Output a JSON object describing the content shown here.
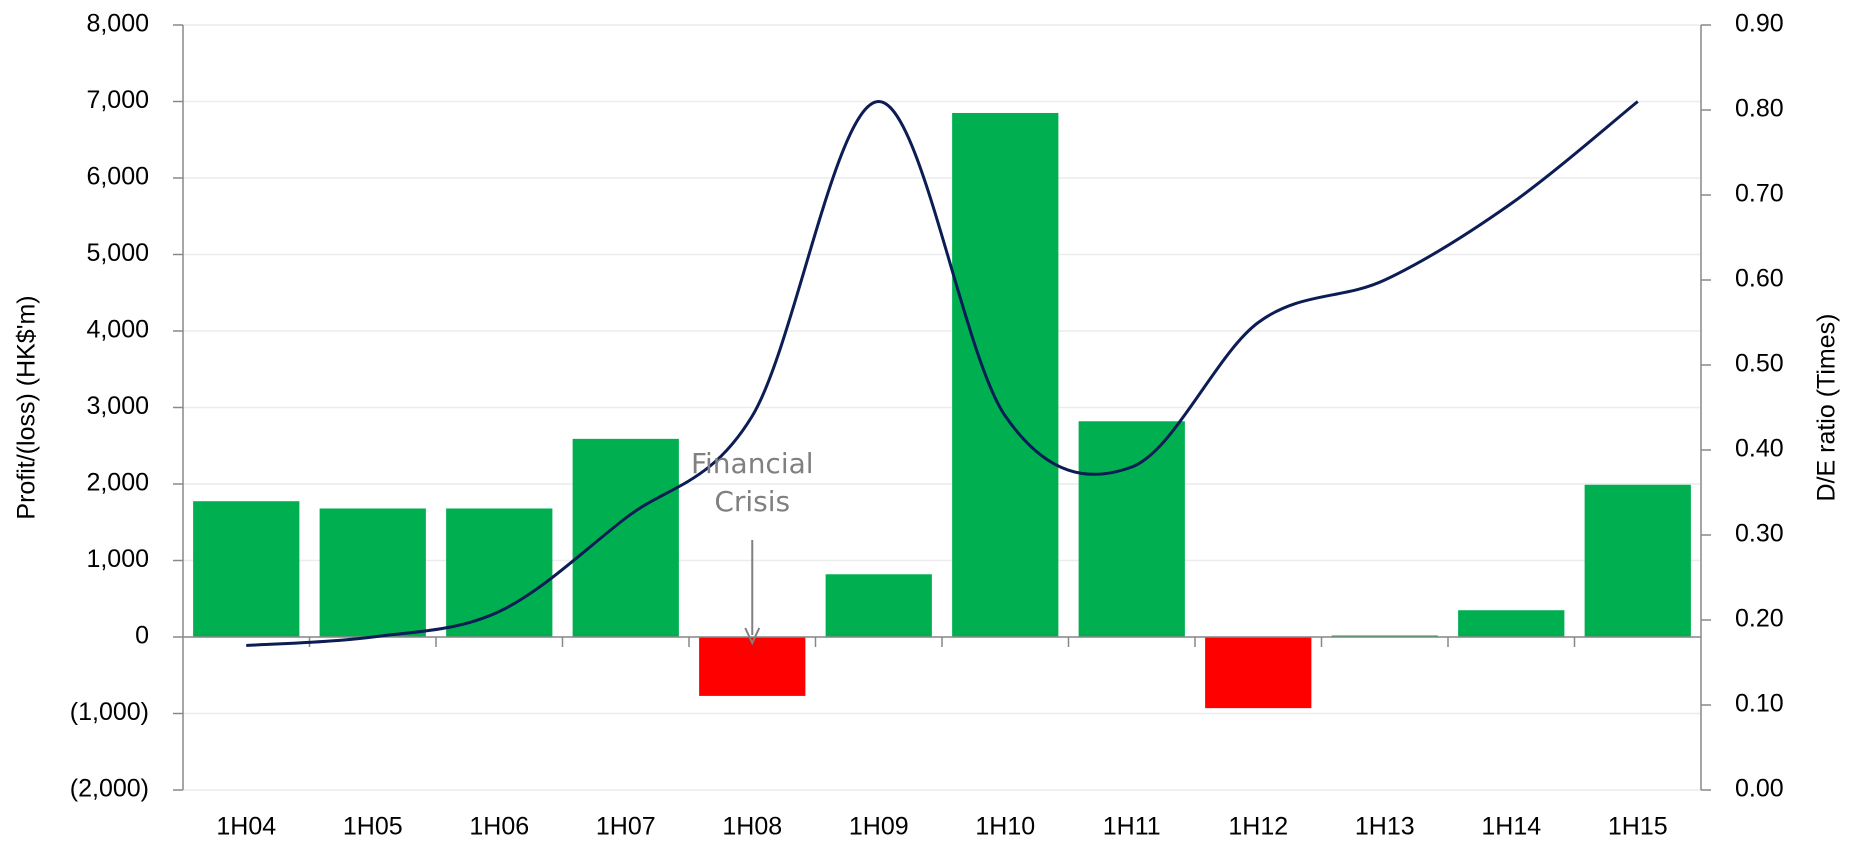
{
  "chart_data": {
    "type": "bar_line",
    "categories": [
      "1H04",
      "1H05",
      "1H06",
      "1H07",
      "1H08",
      "1H09",
      "1H10",
      "1H11",
      "1H12",
      "1H13",
      "1H14",
      "1H15"
    ],
    "series": [
      {
        "name": "Profit/(loss)",
        "type": "bar",
        "color_positive": "#00b050",
        "color_negative": "#ff0000",
        "values": [
          1775,
          1680,
          1680,
          2590,
          -770,
          820,
          6850,
          2820,
          -930,
          20,
          350,
          1990
        ]
      },
      {
        "name": "D/E ratio",
        "type": "line",
        "axis": "y2",
        "color": "#0c1c54",
        "values": [
          0.17,
          0.18,
          0.21,
          0.32,
          0.44,
          0.81,
          0.44,
          0.38,
          0.55,
          0.6,
          0.69,
          0.81
        ]
      }
    ],
    "ylabel": "Profit/(loss) (HK$'m)",
    "y2label": "D/E ratio  (Times)",
    "ylim": [
      -2000,
      8000
    ],
    "yticks": [
      {
        "value": -2000,
        "label": "(2,000)"
      },
      {
        "value": -1000,
        "label": "(1,000)"
      },
      0,
      {
        "value": 1000,
        "label": "1,000"
      },
      {
        "value": 2000,
        "label": "2,000"
      },
      {
        "value": 3000,
        "label": "3,000"
      },
      {
        "value": 4000,
        "label": "4,000"
      },
      {
        "value": 5000,
        "label": "5,000"
      },
      {
        "value": 6000,
        "label": "6,000"
      },
      {
        "value": 7000,
        "label": "7,000"
      },
      {
        "value": 8000,
        "label": "8,000"
      }
    ],
    "y2lim": [
      0,
      0.9
    ],
    "y2ticks": [
      {
        "value": 0,
        "label": "0.00"
      },
      {
        "value": 0.1,
        "label": "0.10"
      },
      {
        "value": 0.2,
        "label": "0.20"
      },
      {
        "value": 0.3,
        "label": "0.30"
      },
      {
        "value": 0.4,
        "label": "0.40"
      },
      {
        "value": 0.5,
        "label": "0.50"
      },
      {
        "value": 0.6,
        "label": "0.60"
      },
      {
        "value": 0.7,
        "label": "0.70"
      },
      {
        "value": 0.8,
        "label": "0.80"
      },
      {
        "value": 0.9,
        "label": "0.90"
      }
    ],
    "grid": true,
    "annotation": {
      "lines": [
        "Financial",
        "Crisis"
      ],
      "category": 4
    }
  }
}
